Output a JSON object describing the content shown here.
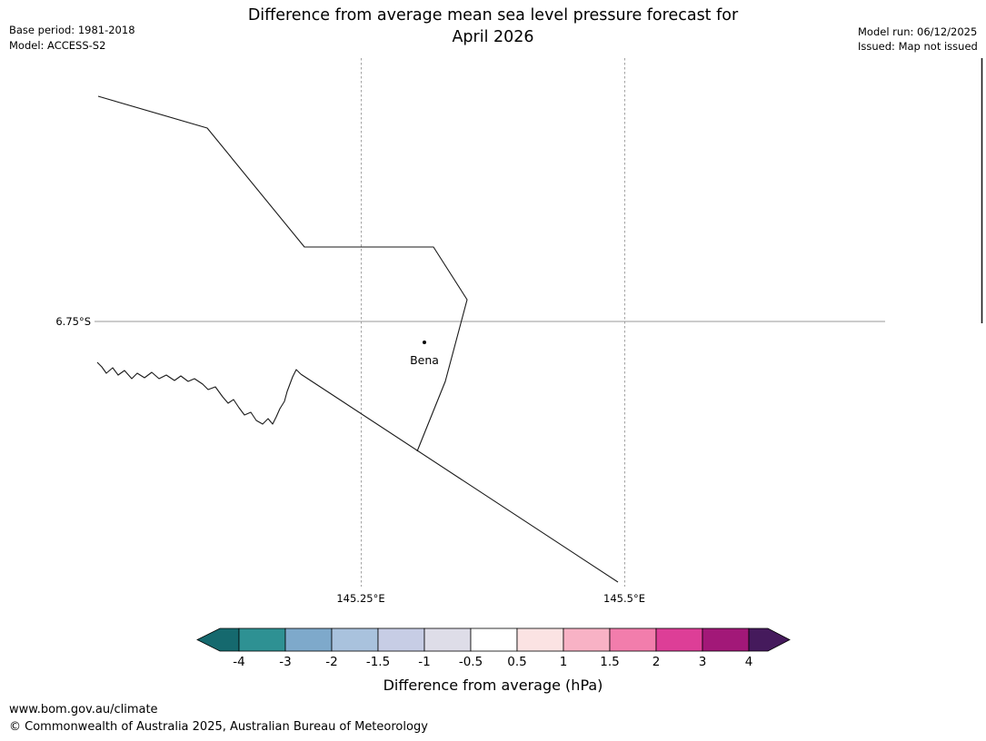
{
  "header": {
    "title_line1": "Difference from average mean sea level pressure forecast for",
    "title_line2": "April 2026",
    "base_period": "Base period: 1981-2018",
    "model": "Model: ACCESS-S2",
    "model_run": "Model run: 06/12/2025",
    "issued": "Issued: Map not issued"
  },
  "map": {
    "lat_label": "6.75°S",
    "lon_labels": [
      "145.25°E",
      "145.5°E"
    ],
    "place": {
      "name": "Bena"
    }
  },
  "colorbar": {
    "title": "Difference from average (hPa)",
    "ticks": [
      "-4",
      "-3",
      "-2",
      "-1.5",
      "-1",
      "-0.5",
      "0.5",
      "1",
      "1.5",
      "2",
      "3",
      "4"
    ],
    "segment_colors": [
      "#2e9193",
      "#7ea9cb",
      "#a9c2dd",
      "#c7cde5",
      "#dedde8",
      "#ffffff",
      "#fbe3e3",
      "#f8b2c5",
      "#f27dac",
      "#dd3e97",
      "#a21878"
    ],
    "left_arrow_color": "#15696e",
    "right_arrow_color": "#451a5c"
  },
  "footer": {
    "url": "www.bom.gov.au/climate",
    "copyright": "© Commonwealth of Australia 2025, Australian Bureau of Meteorology"
  }
}
